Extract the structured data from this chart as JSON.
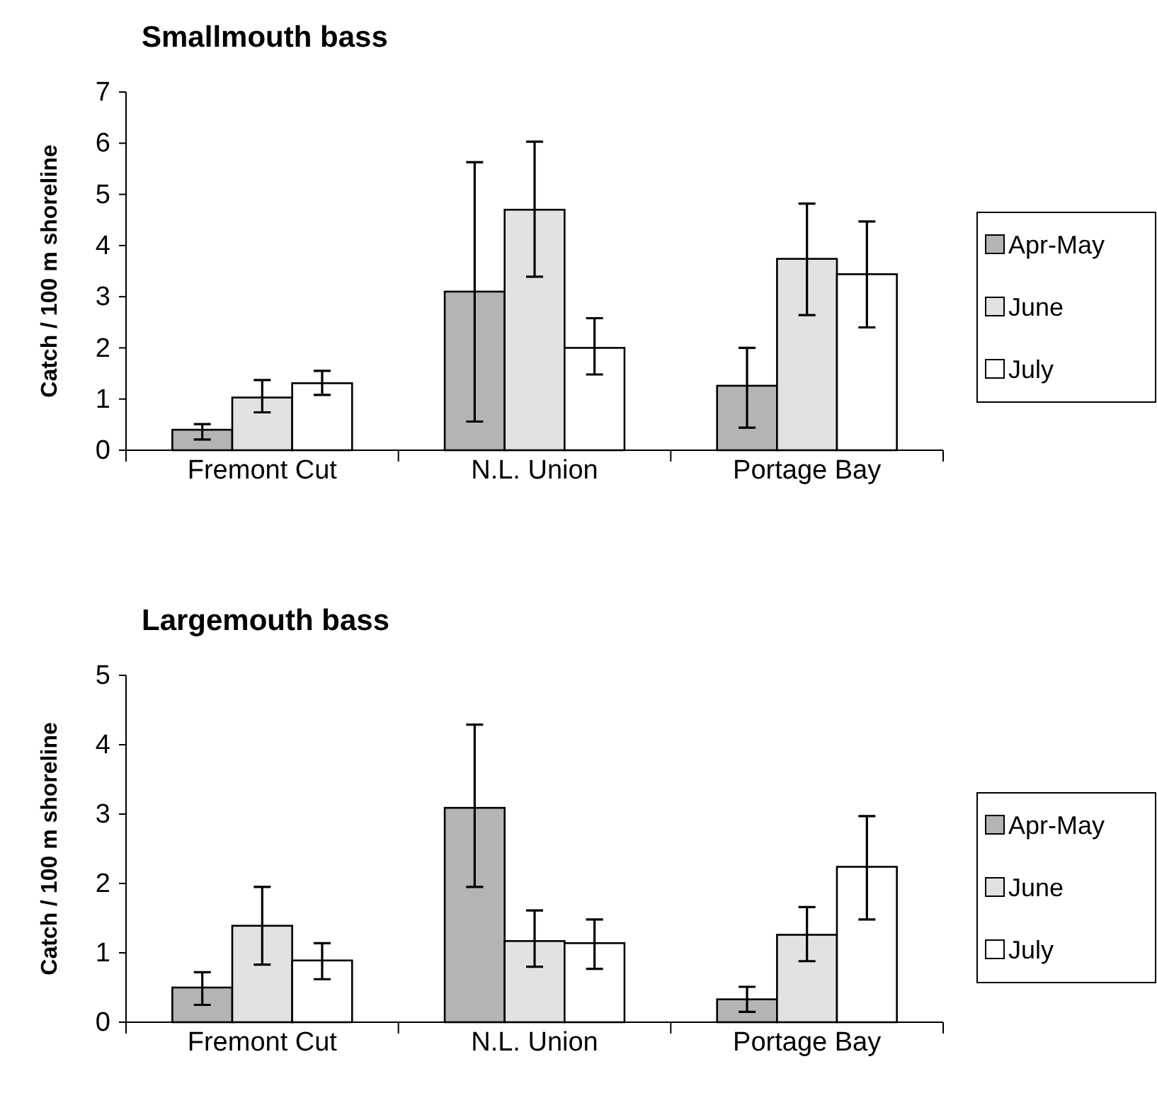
{
  "chart_data": [
    {
      "type": "bar",
      "title": "Smallmouth bass",
      "ylabel": "Catch / 100 m shoreline",
      "categories": [
        "Fremont Cut",
        "N.L. Union",
        "Portage Bay"
      ],
      "ylim": [
        0,
        7
      ],
      "yticks": [
        0,
        1,
        2,
        3,
        4,
        5,
        6,
        7
      ],
      "grid": false,
      "legend": "right",
      "series": [
        {
          "name": "Apr-May",
          "color": "#b4b4b4",
          "values": [
            0.4,
            3.1,
            1.26
          ],
          "errors": [
            [
              0.21,
              0.51
            ],
            [
              0.56,
              5.63
            ],
            [
              0.44,
              2.0
            ]
          ]
        },
        {
          "name": "June",
          "color": "#e2e2e2",
          "values": [
            1.03,
            4.7,
            3.74
          ],
          "errors": [
            [
              0.74,
              1.37
            ],
            [
              3.39,
              6.03
            ],
            [
              2.64,
              4.82
            ]
          ]
        },
        {
          "name": "July",
          "color": "#ffffff",
          "values": [
            1.31,
            2.0,
            3.44
          ],
          "errors": [
            [
              1.08,
              1.55
            ],
            [
              1.48,
              2.58
            ],
            [
              2.4,
              4.47
            ]
          ]
        }
      ]
    },
    {
      "type": "bar",
      "title": "Largemouth bass",
      "ylabel": "Catch / 100 m shoreline",
      "categories": [
        "Fremont Cut",
        "N.L. Union",
        "Portage Bay"
      ],
      "ylim": [
        0,
        5
      ],
      "yticks": [
        0,
        1,
        2,
        3,
        4,
        5
      ],
      "grid": false,
      "legend": "right",
      "series": [
        {
          "name": "Apr-May",
          "color": "#b4b4b4",
          "values": [
            0.5,
            3.09,
            0.33
          ],
          "errors": [
            [
              0.25,
              0.72
            ],
            [
              1.95,
              4.29
            ],
            [
              0.15,
              0.51
            ]
          ]
        },
        {
          "name": "June",
          "color": "#e2e2e2",
          "values": [
            1.39,
            1.17,
            1.26
          ],
          "errors": [
            [
              0.83,
              1.95
            ],
            [
              0.8,
              1.61
            ],
            [
              0.88,
              1.66
            ]
          ]
        },
        {
          "name": "July",
          "color": "#ffffff",
          "values": [
            0.89,
            1.14,
            2.24
          ],
          "errors": [
            [
              0.62,
              1.14
            ],
            [
              0.77,
              1.48
            ],
            [
              1.48,
              2.97
            ]
          ]
        }
      ]
    }
  ]
}
